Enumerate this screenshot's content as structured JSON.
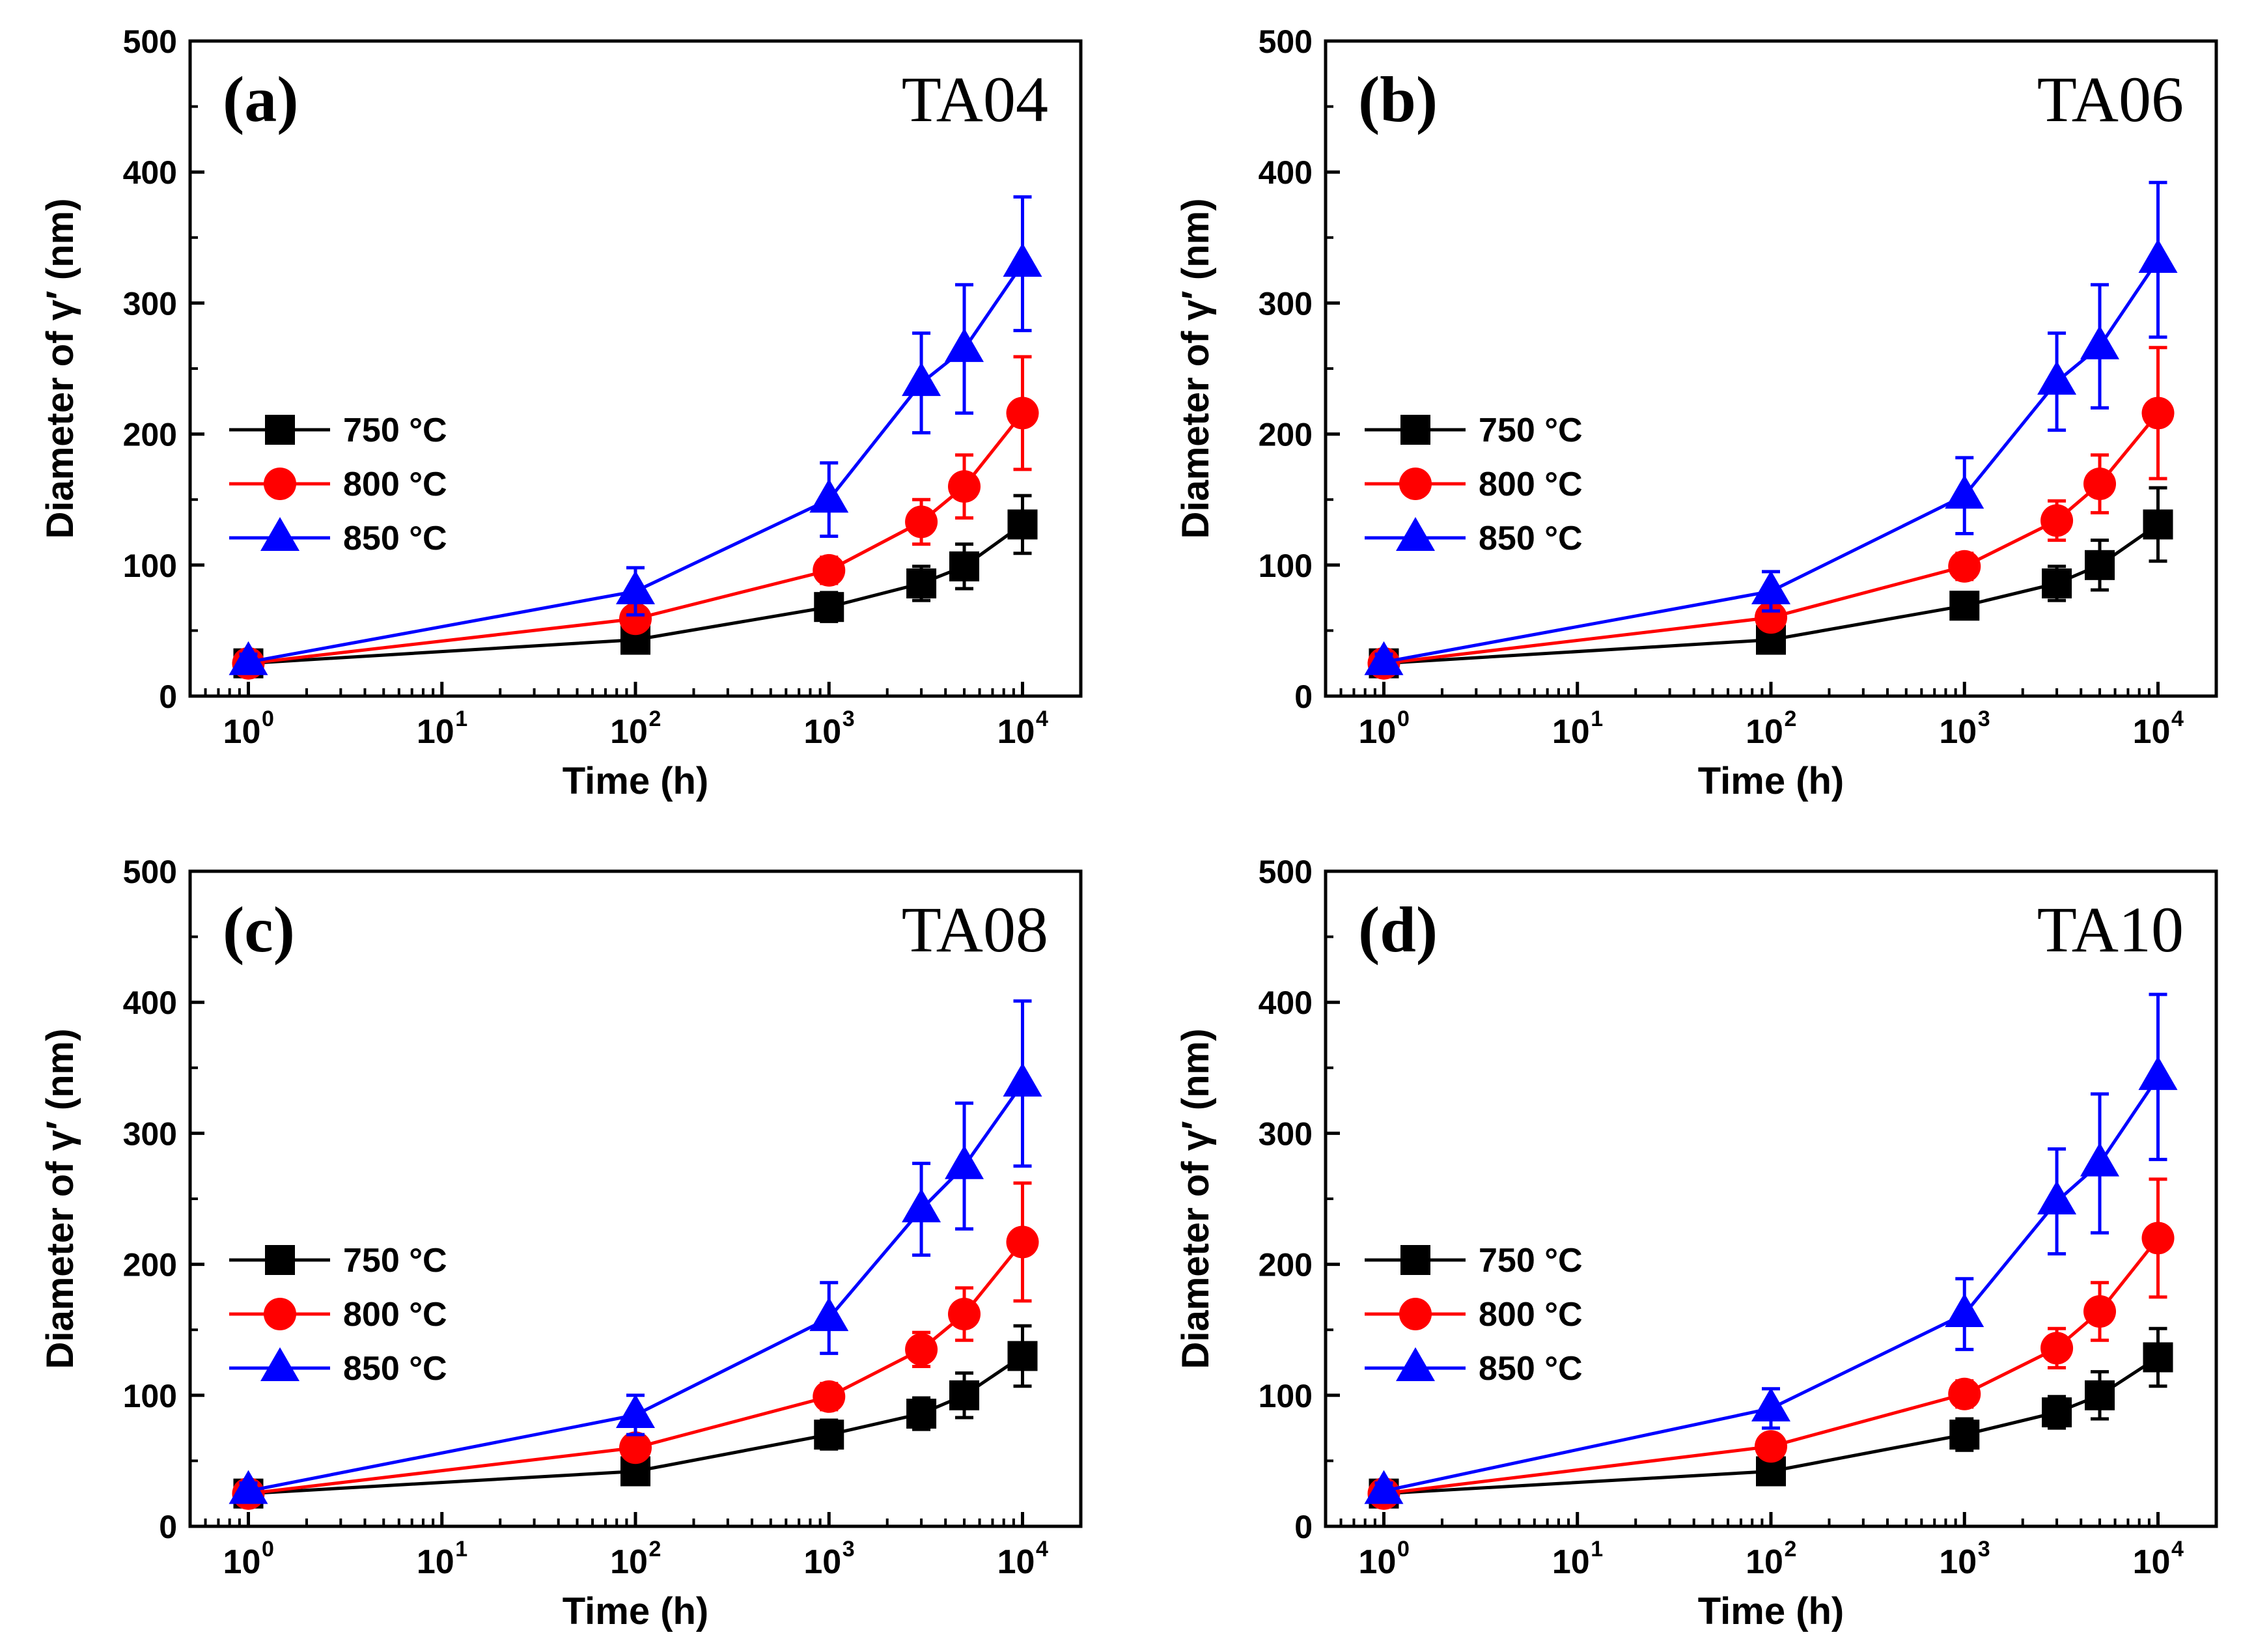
{
  "chart_data": [
    {
      "type": "line",
      "panel_label": "(a)",
      "sample": "TA04",
      "xlabel": "Time (h)",
      "ylabel": "Diameter of γ′ (nm)",
      "xscale": "log",
      "xlim": [
        0.5,
        20000
      ],
      "ylim": [
        0,
        500
      ],
      "x_tick_base": "10",
      "x_tick_exponents": [
        "0",
        "1",
        "2",
        "3",
        "4"
      ],
      "y_ticks": [
        "0",
        "100",
        "200",
        "300",
        "400",
        "500"
      ],
      "x": [
        1,
        100,
        1000,
        3000,
        5000,
        10000
      ],
      "series": [
        {
          "name": "750 °C",
          "color": "#000000",
          "marker": "square",
          "values": [
            25,
            43,
            68,
            86,
            99,
            131
          ],
          "errors": [
            6,
            6,
            11,
            13,
            17,
            22
          ]
        },
        {
          "name": "800 °C",
          "color": "#ff0000",
          "marker": "circle",
          "values": [
            25,
            59,
            96,
            133,
            160,
            216
          ],
          "errors": [
            6,
            6,
            10,
            17,
            24,
            43
          ]
        },
        {
          "name": "850 °C",
          "color": "#0000ff",
          "marker": "triangle",
          "values": [
            26,
            80,
            150,
            239,
            265,
            330
          ],
          "errors": [
            6,
            18,
            28,
            38,
            49,
            51
          ]
        }
      ]
    },
    {
      "type": "line",
      "panel_label": "(b)",
      "sample": "TA06",
      "xlabel": "Time (h)",
      "ylabel": "Diameter of γ′ (nm)",
      "xscale": "log",
      "xlim": [
        0.5,
        20000
      ],
      "ylim": [
        0,
        500
      ],
      "x_tick_base": "10",
      "x_tick_exponents": [
        "0",
        "1",
        "2",
        "3",
        "4"
      ],
      "y_ticks": [
        "0",
        "100",
        "200",
        "300",
        "400",
        "500"
      ],
      "x": [
        1,
        100,
        1000,
        3000,
        5000,
        10000
      ],
      "series": [
        {
          "name": "750 °C",
          "color": "#000000",
          "marker": "square",
          "values": [
            25,
            43,
            69,
            86,
            100,
            131
          ],
          "errors": [
            6,
            6,
            10,
            13,
            19,
            28
          ]
        },
        {
          "name": "800 °C",
          "color": "#ff0000",
          "marker": "circle",
          "values": [
            25,
            60,
            99,
            134,
            162,
            216
          ],
          "errors": [
            6,
            6,
            10,
            15,
            22,
            50
          ]
        },
        {
          "name": "850 °C",
          "color": "#0000ff",
          "marker": "triangle",
          "values": [
            26,
            80,
            153,
            240,
            267,
            333
          ],
          "errors": [
            6,
            15,
            29,
            37,
            47,
            59
          ]
        }
      ]
    },
    {
      "type": "line",
      "panel_label": "(c)",
      "sample": "TA08",
      "xlabel": "Time (h)",
      "ylabel": "Diameter of γ′ (nm)",
      "xscale": "log",
      "xlim": [
        0.5,
        20000
      ],
      "ylim": [
        0,
        500
      ],
      "x_tick_base": "10",
      "x_tick_exponents": [
        "0",
        "1",
        "2",
        "3",
        "4"
      ],
      "y_ticks": [
        "0",
        "100",
        "200",
        "300",
        "400",
        "500"
      ],
      "x": [
        1,
        100,
        1000,
        3000,
        5000,
        10000
      ],
      "series": [
        {
          "name": "750 °C",
          "color": "#000000",
          "marker": "square",
          "values": [
            25,
            42,
            70,
            86,
            100,
            130
          ],
          "errors": [
            6,
            6,
            11,
            12,
            17,
            23
          ]
        },
        {
          "name": "800 °C",
          "color": "#ff0000",
          "marker": "circle",
          "values": [
            25,
            60,
            99,
            135,
            162,
            217
          ],
          "errors": [
            6,
            6,
            10,
            13,
            20,
            45
          ]
        },
        {
          "name": "850 °C",
          "color": "#0000ff",
          "marker": "triangle",
          "values": [
            27,
            85,
            159,
            242,
            275,
            338
          ],
          "errors": [
            6,
            15,
            27,
            35,
            48,
            63
          ]
        }
      ]
    },
    {
      "type": "line",
      "panel_label": "(d)",
      "sample": "TA10",
      "xlabel": "Time (h)",
      "ylabel": "Diameter of γ′ (nm)",
      "xscale": "log",
      "xlim": [
        0.5,
        20000
      ],
      "ylim": [
        0,
        500
      ],
      "x_tick_base": "10",
      "x_tick_exponents": [
        "0",
        "1",
        "2",
        "3",
        "4"
      ],
      "y_ticks": [
        "0",
        "100",
        "200",
        "300",
        "400",
        "500"
      ],
      "x": [
        1,
        100,
        1000,
        3000,
        5000,
        10000
      ],
      "series": [
        {
          "name": "750 °C",
          "color": "#000000",
          "marker": "square",
          "values": [
            25,
            42,
            70,
            87,
            100,
            129
          ],
          "errors": [
            6,
            6,
            12,
            12,
            18,
            22
          ]
        },
        {
          "name": "800 °C",
          "color": "#ff0000",
          "marker": "circle",
          "values": [
            25,
            61,
            101,
            136,
            164,
            220
          ],
          "errors": [
            6,
            6,
            10,
            15,
            22,
            45
          ]
        },
        {
          "name": "850 °C",
          "color": "#0000ff",
          "marker": "triangle",
          "values": [
            27,
            90,
            162,
            248,
            277,
            343
          ],
          "errors": [
            6,
            15,
            27,
            40,
            53,
            63
          ]
        }
      ]
    }
  ]
}
